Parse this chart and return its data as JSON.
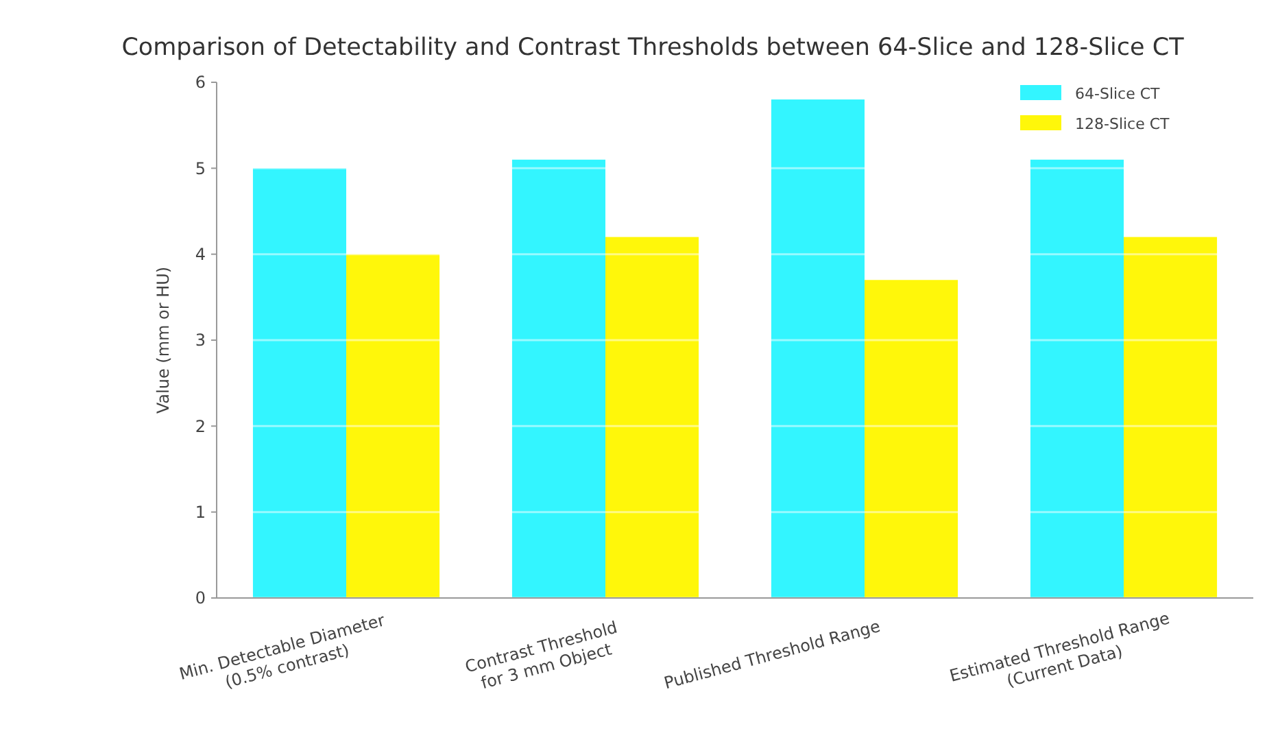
{
  "chart_data": {
    "type": "bar",
    "title": "Comparison of Detectability and Contrast Thresholds between 64-Slice and 128-Slice CT",
    "ylabel": "Value (mm or HU)",
    "categories": [
      "Min. Detectable Diameter\n(0.5% contrast)",
      "Contrast Threshold\nfor 3 mm Object",
      "Published Threshold Range",
      "Estimated Threshold Range\n(Current Data)"
    ],
    "series": [
      {
        "name": "64-Slice CT",
        "color": "#33f5ff",
        "values": [
          5.0,
          5.1,
          5.8,
          5.1
        ]
      },
      {
        "name": "128-Slice CT",
        "color": "#fff70a",
        "values": [
          4.0,
          4.2,
          3.7,
          4.2
        ]
      }
    ],
    "ylim": [
      0,
      6
    ],
    "yticks": [
      0,
      1,
      2,
      3,
      4,
      5,
      6
    ],
    "grid": "y",
    "legend": "top right"
  }
}
